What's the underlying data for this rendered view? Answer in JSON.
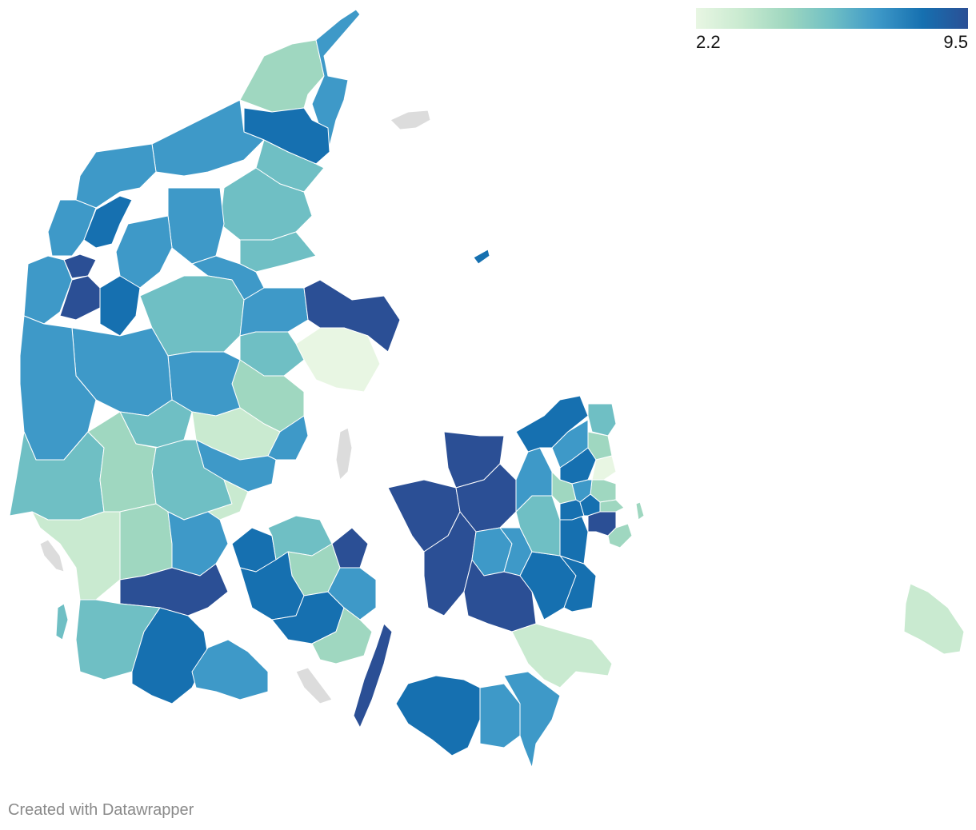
{
  "legend": {
    "min_label": "2.2",
    "max_label": "9.5",
    "gradient": [
      "#e8f6e3",
      "#c9ead0",
      "#9fd7c0",
      "#6fbfc4",
      "#3e99c8",
      "#1670b0",
      "#2b4f95"
    ]
  },
  "colors": {
    "no_data": "#dcdcdc",
    "border": "#ffffff",
    "background": "#ffffff"
  },
  "credit": "Created with Datawrapper"
}
